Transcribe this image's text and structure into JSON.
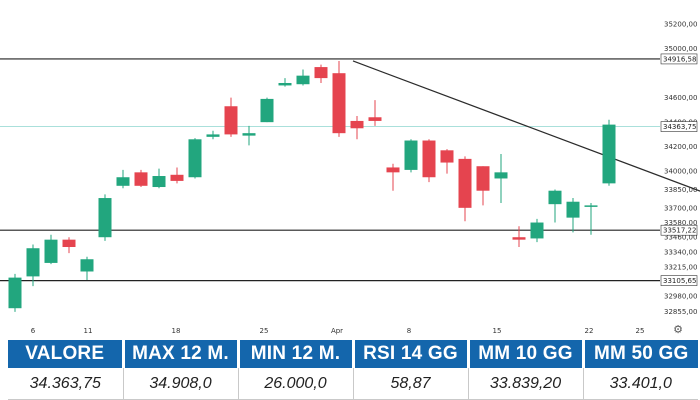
{
  "chart_data": {
    "type": "candlestick",
    "x_tick_labels": [
      "6",
      "11",
      "18",
      "25",
      "Apr",
      "8",
      "15",
      "22",
      "25"
    ],
    "y_tick_labels": [
      "35200,00",
      "35000,00",
      "34600,00",
      "34400,00",
      "34200,00",
      "34000,00",
      "33850,00",
      "33700,00",
      "33580,00",
      "33460,00",
      "33340,00",
      "33215,00",
      "32980,00",
      "32855,00"
    ],
    "y_tick_values": [
      35200,
      35000,
      34600,
      34400,
      34200,
      34000,
      33850,
      33700,
      33580,
      33460,
      33340,
      33215,
      32980,
      32855
    ],
    "ylim": [
      32800,
      35300
    ],
    "horizontal_levels": [
      {
        "value": 34916.58,
        "label": "34916,58",
        "color": "#222222"
      },
      {
        "value": 33517.22,
        "label": "33517,22",
        "color": "#222222"
      },
      {
        "value": 33105.65,
        "label": "33105,65",
        "color": "#222222"
      },
      {
        "value": 34363.75,
        "label": "34363,75",
        "color": "#8ed6cf"
      }
    ],
    "trendline": {
      "start": {
        "index": 19,
        "value": 34900
      },
      "end": {
        "index": 40,
        "value": 33730
      }
    },
    "candles": [
      {
        "o": 32880,
        "h": 33160,
        "l": 32850,
        "c": 33130
      },
      {
        "o": 33140,
        "h": 33400,
        "l": 33060,
        "c": 33370
      },
      {
        "o": 33250,
        "h": 33480,
        "l": 33240,
        "c": 33440
      },
      {
        "o": 33440,
        "h": 33460,
        "l": 33330,
        "c": 33380
      },
      {
        "o": 33180,
        "h": 33300,
        "l": 33110,
        "c": 33280
      },
      {
        "o": 33460,
        "h": 33810,
        "l": 33430,
        "c": 33780
      },
      {
        "o": 33880,
        "h": 34010,
        "l": 33860,
        "c": 33950
      },
      {
        "o": 33990,
        "h": 34010,
        "l": 33870,
        "c": 33880
      },
      {
        "o": 33870,
        "h": 34020,
        "l": 33860,
        "c": 33960
      },
      {
        "o": 33970,
        "h": 34030,
        "l": 33900,
        "c": 33920
      },
      {
        "o": 33950,
        "h": 34270,
        "l": 33940,
        "c": 34260
      },
      {
        "o": 34280,
        "h": 34330,
        "l": 34260,
        "c": 34300
      },
      {
        "o": 34530,
        "h": 34600,
        "l": 34280,
        "c": 34300
      },
      {
        "o": 34290,
        "h": 34370,
        "l": 34210,
        "c": 34310
      },
      {
        "o": 34400,
        "h": 34600,
        "l": 34400,
        "c": 34590
      },
      {
        "o": 34700,
        "h": 34760,
        "l": 34690,
        "c": 34720
      },
      {
        "o": 34710,
        "h": 34830,
        "l": 34700,
        "c": 34780
      },
      {
        "o": 34850,
        "h": 34870,
        "l": 34720,
        "c": 34760
      },
      {
        "o": 34800,
        "h": 34900,
        "l": 34280,
        "c": 34310
      },
      {
        "o": 34410,
        "h": 34450,
        "l": 34260,
        "c": 34350
      },
      {
        "o": 34440,
        "h": 34580,
        "l": 34370,
        "c": 34410
      },
      {
        "o": 34030,
        "h": 34060,
        "l": 33840,
        "c": 33990
      },
      {
        "o": 34010,
        "h": 34260,
        "l": 33990,
        "c": 34250
      },
      {
        "o": 34250,
        "h": 34260,
        "l": 33910,
        "c": 33950
      },
      {
        "o": 34170,
        "h": 34180,
        "l": 33980,
        "c": 34070
      },
      {
        "o": 34100,
        "h": 34120,
        "l": 33590,
        "c": 33700
      },
      {
        "o": 34040,
        "h": 34040,
        "l": 33720,
        "c": 33840
      },
      {
        "o": 33940,
        "h": 34140,
        "l": 33740,
        "c": 33990
      },
      {
        "o": 33460,
        "h": 33550,
        "l": 33380,
        "c": 33440
      },
      {
        "o": 33450,
        "h": 33610,
        "l": 33420,
        "c": 33580
      },
      {
        "o": 33730,
        "h": 33850,
        "l": 33580,
        "c": 33840
      },
      {
        "o": 33620,
        "h": 33780,
        "l": 33500,
        "c": 33750
      },
      {
        "o": 33720,
        "h": 33740,
        "l": 33480,
        "c": 33720
      },
      {
        "o": 33900,
        "h": 34420,
        "l": 33880,
        "c": 34380
      }
    ],
    "colors": {
      "up": "#22a67e",
      "down": "#e5444f"
    }
  },
  "stats": [
    {
      "label": "VALORE",
      "value": "34.363,75"
    },
    {
      "label": "MAX 12 M.",
      "value": "34.908,0"
    },
    {
      "label": "MIN 12 M.",
      "value": "26.000,0"
    },
    {
      "label": "RSI 14 GG",
      "value": "58,87"
    },
    {
      "label": "MM 10 GG",
      "value": "33.839,20"
    },
    {
      "label": "MM 50 GG",
      "value": "33.401,0"
    }
  ],
  "settings_icon": "gear-icon",
  "header_color": "#1466ac"
}
